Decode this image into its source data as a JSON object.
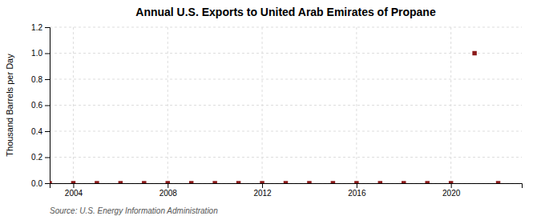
{
  "chart_data": {
    "type": "scatter",
    "title": "Annual U.S. Exports to United Arab Emirates of Propane",
    "ylabel": "Thousand Barrels per Day",
    "annotation": "Source: U.S. Energy Information Administration",
    "x": [
      2003,
      2004,
      2005,
      2006,
      2007,
      2008,
      2009,
      2010,
      2011,
      2012,
      2013,
      2014,
      2015,
      2016,
      2017,
      2018,
      2019,
      2020,
      2021,
      2022
    ],
    "values": [
      0,
      0,
      0,
      0,
      0,
      0,
      0,
      0,
      0,
      0,
      0,
      0,
      0,
      0,
      0,
      0,
      0,
      0,
      1.0,
      0
    ],
    "color": "#8b1a1a",
    "marker": "square",
    "xlim": [
      2003,
      2023
    ],
    "xticks": [
      2004,
      2008,
      2012,
      2016,
      2020
    ],
    "ylim": [
      0.0,
      1.2
    ],
    "yticks": [
      {
        "value": 0.0,
        "label": "0.0"
      },
      0.2,
      0.4,
      0.6,
      0.8,
      {
        "value": 1.0,
        "label": "1.0"
      },
      1.2
    ],
    "grid": true
  }
}
